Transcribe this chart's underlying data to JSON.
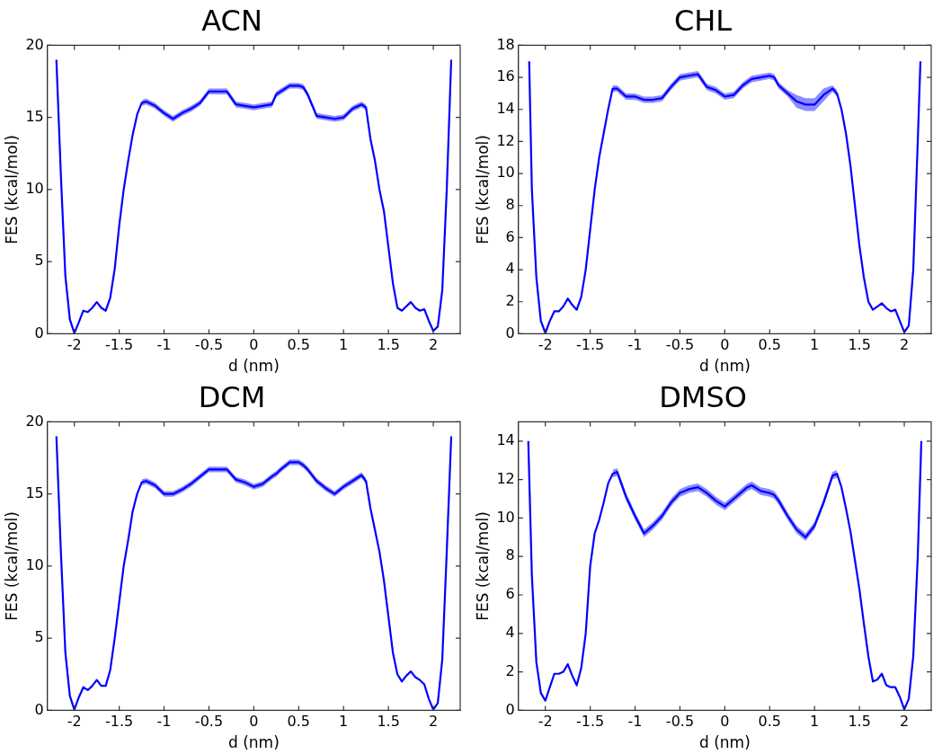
{
  "chart_data": [
    {
      "type": "line",
      "title": "ACN",
      "xlabel": "d (nm)",
      "ylabel": "FES (kcal/mol)",
      "xlim": [
        -2.3,
        2.3
      ],
      "ylim": [
        0,
        20
      ],
      "xticks": [
        -2,
        -1.5,
        -1,
        -0.5,
        0,
        0.5,
        1,
        1.5,
        2
      ],
      "yticks": [
        0,
        5,
        10,
        15,
        20
      ],
      "x": [
        -2.2,
        -2.15,
        -2.1,
        -2.05,
        -2,
        -1.95,
        -1.9,
        -1.85,
        -1.8,
        -1.75,
        -1.7,
        -1.65,
        -1.6,
        -1.55,
        -1.5,
        -1.45,
        -1.4,
        -1.35,
        -1.3,
        -1.25,
        -1.2,
        -1.1,
        -1,
        -0.9,
        -0.8,
        -0.7,
        -0.6,
        -0.5,
        -0.4,
        -0.3,
        -0.2,
        -0.1,
        0,
        0.1,
        0.2,
        0.25,
        0.3,
        0.4,
        0.5,
        0.55,
        0.6,
        0.7,
        0.8,
        0.9,
        1,
        1.1,
        1.2,
        1.25,
        1.3,
        1.35,
        1.4,
        1.45,
        1.5,
        1.55,
        1.6,
        1.65,
        1.7,
        1.75,
        1.8,
        1.85,
        1.9,
        1.95,
        2,
        2.05,
        2.1,
        2.15,
        2.2
      ],
      "series": [
        {
          "color": "#0000ff",
          "values": [
            19,
            11,
            4,
            1,
            0.05,
            0.8,
            1.6,
            1.5,
            1.8,
            2.2,
            1.8,
            1.6,
            2.5,
            4.5,
            7.5,
            10,
            12,
            13.8,
            15.2,
            16,
            16.1,
            15.8,
            15.3,
            14.9,
            15.3,
            15.6,
            16,
            16.8,
            16.8,
            16.8,
            15.9,
            15.8,
            15.7,
            15.8,
            15.9,
            16.6,
            16.8,
            17.2,
            17.2,
            17.1,
            16.6,
            15.1,
            15,
            14.9,
            15,
            15.6,
            15.9,
            15.7,
            13.5,
            12,
            10,
            8.5,
            6,
            3.5,
            1.8,
            1.6,
            1.9,
            2.2,
            1.8,
            1.6,
            1.7,
            0.9,
            0.2,
            0.5,
            3,
            10,
            19
          ],
          "lower": [
            null,
            null,
            null,
            null,
            null,
            null,
            null,
            null,
            null,
            null,
            null,
            null,
            null,
            null,
            null,
            null,
            null,
            null,
            null,
            15.8,
            15.9,
            15.6,
            15.1,
            14.7,
            15.1,
            15.4,
            15.8,
            16.6,
            16.6,
            16.6,
            15.7,
            15.6,
            15.5,
            15.6,
            15.7,
            16.4,
            16.6,
            17,
            17,
            16.9,
            16.4,
            14.9,
            14.8,
            14.7,
            14.8,
            15.4,
            15.7,
            15.5,
            null,
            null,
            null,
            null,
            null,
            null,
            null,
            null,
            null,
            null,
            null,
            null,
            null,
            null,
            null,
            null,
            null,
            null,
            null
          ],
          "upper": [
            null,
            null,
            null,
            null,
            null,
            null,
            null,
            null,
            null,
            null,
            null,
            null,
            null,
            null,
            null,
            null,
            null,
            null,
            null,
            16.2,
            16.3,
            16,
            15.5,
            15.1,
            15.5,
            15.8,
            16.2,
            17,
            17,
            17,
            16.1,
            16,
            15.9,
            16,
            16.1,
            16.8,
            17,
            17.4,
            17.4,
            17.3,
            16.8,
            15.3,
            15.2,
            15.1,
            15.2,
            15.8,
            16.1,
            15.9,
            null,
            null,
            null,
            null,
            null,
            null,
            null,
            null,
            null,
            null,
            null,
            null,
            null,
            null,
            null,
            null,
            null,
            null,
            null
          ]
        }
      ]
    },
    {
      "type": "line",
      "title": "CHL",
      "xlabel": "d (nm)",
      "ylabel": "FES (kcal/mol)",
      "xlim": [
        -2.3,
        2.3
      ],
      "ylim": [
        0,
        18
      ],
      "xticks": [
        -2,
        -1.5,
        -1,
        -0.5,
        0,
        0.5,
        1,
        1.5,
        2
      ],
      "yticks": [
        0,
        2,
        4,
        6,
        8,
        10,
        12,
        14,
        16,
        18
      ],
      "x": [
        -2.18,
        -2.15,
        -2.1,
        -2.05,
        -2,
        -1.95,
        -1.9,
        -1.85,
        -1.8,
        -1.75,
        -1.7,
        -1.65,
        -1.6,
        -1.55,
        -1.5,
        -1.45,
        -1.4,
        -1.35,
        -1.3,
        -1.25,
        -1.2,
        -1.1,
        -1,
        -0.9,
        -0.8,
        -0.7,
        -0.6,
        -0.5,
        -0.4,
        -0.3,
        -0.2,
        -0.1,
        0,
        0.1,
        0.2,
        0.25,
        0.3,
        0.4,
        0.5,
        0.55,
        0.6,
        0.7,
        0.8,
        0.9,
        1,
        1.1,
        1.2,
        1.25,
        1.3,
        1.35,
        1.4,
        1.45,
        1.5,
        1.55,
        1.6,
        1.65,
        1.7,
        1.75,
        1.8,
        1.85,
        1.9,
        1.95,
        2,
        2.05,
        2.1,
        2.15,
        2.18
      ],
      "series": [
        {
          "color": "#0000ff",
          "values": [
            17,
            9,
            3.5,
            0.8,
            0.05,
            0.8,
            1.4,
            1.4,
            1.7,
            2.2,
            1.8,
            1.5,
            2.3,
            4,
            6.5,
            9,
            11,
            12.5,
            14,
            15.3,
            15.3,
            14.8,
            14.8,
            14.6,
            14.6,
            14.7,
            15.4,
            16,
            16.1,
            16.2,
            15.4,
            15.2,
            14.8,
            14.9,
            15.5,
            15.7,
            15.9,
            16,
            16.1,
            16,
            15.5,
            15,
            14.5,
            14.3,
            14.3,
            14.9,
            15.3,
            15,
            14,
            12.5,
            10.5,
            8,
            5.5,
            3.5,
            2,
            1.5,
            1.7,
            1.9,
            1.6,
            1.4,
            1.5,
            0.8,
            0.1,
            0.5,
            4,
            12,
            17
          ],
          "lower": [
            null,
            null,
            null,
            null,
            null,
            null,
            null,
            null,
            null,
            null,
            null,
            null,
            null,
            null,
            null,
            null,
            null,
            null,
            null,
            15.1,
            15.1,
            14.6,
            14.6,
            14.4,
            14.4,
            14.5,
            15.2,
            15.8,
            15.9,
            16,
            15.2,
            15,
            14.6,
            14.7,
            15.3,
            15.5,
            15.7,
            15.8,
            15.9,
            15.8,
            15.3,
            14.8,
            14.1,
            13.9,
            13.9,
            14.5,
            15.1,
            14.8,
            null,
            null,
            null,
            null,
            null,
            null,
            null,
            null,
            null,
            null,
            null,
            null,
            null,
            null,
            null,
            null,
            null,
            null,
            null
          ],
          "upper": [
            null,
            null,
            null,
            null,
            null,
            null,
            null,
            null,
            null,
            null,
            null,
            null,
            null,
            null,
            null,
            null,
            null,
            null,
            null,
            15.5,
            15.5,
            15,
            15,
            14.8,
            14.8,
            14.9,
            15.6,
            16.2,
            16.3,
            16.4,
            15.6,
            15.4,
            15,
            15.1,
            15.7,
            15.9,
            16.1,
            16.2,
            16.3,
            16.2,
            15.7,
            15.2,
            14.9,
            14.7,
            14.7,
            15.3,
            15.5,
            15.2,
            null,
            null,
            null,
            null,
            null,
            null,
            null,
            null,
            null,
            null,
            null,
            null,
            null,
            null,
            null,
            null,
            null,
            null,
            null
          ]
        }
      ]
    },
    {
      "type": "line",
      "title": "DCM",
      "xlabel": "d (nm)",
      "ylabel": "FES (kcal/mol)",
      "xlim": [
        -2.3,
        2.3
      ],
      "ylim": [
        0,
        20
      ],
      "xticks": [
        -2,
        -1.5,
        -1,
        -0.5,
        0,
        0.5,
        1,
        1.5,
        2
      ],
      "yticks": [
        0,
        5,
        10,
        15,
        20
      ],
      "x": [
        -2.2,
        -2.15,
        -2.1,
        -2.05,
        -2,
        -1.95,
        -1.9,
        -1.85,
        -1.8,
        -1.75,
        -1.7,
        -1.65,
        -1.6,
        -1.55,
        -1.5,
        -1.45,
        -1.4,
        -1.35,
        -1.3,
        -1.25,
        -1.2,
        -1.1,
        -1,
        -0.9,
        -0.8,
        -0.7,
        -0.6,
        -0.5,
        -0.4,
        -0.3,
        -0.2,
        -0.1,
        0,
        0.1,
        0.2,
        0.25,
        0.3,
        0.4,
        0.5,
        0.55,
        0.6,
        0.7,
        0.8,
        0.9,
        1,
        1.1,
        1.2,
        1.25,
        1.3,
        1.35,
        1.4,
        1.45,
        1.5,
        1.55,
        1.6,
        1.65,
        1.7,
        1.75,
        1.8,
        1.85,
        1.9,
        1.95,
        2,
        2.05,
        2.1,
        2.15,
        2.2
      ],
      "series": [
        {
          "color": "#0000ff",
          "values": [
            19,
            11,
            4,
            1,
            0.05,
            0.9,
            1.6,
            1.4,
            1.7,
            2.1,
            1.7,
            1.7,
            2.8,
            5,
            7.5,
            10,
            11.8,
            13.8,
            15,
            15.8,
            15.9,
            15.6,
            15,
            15,
            15.3,
            15.7,
            16.2,
            16.7,
            16.7,
            16.7,
            16,
            15.8,
            15.5,
            15.7,
            16.2,
            16.4,
            16.7,
            17.2,
            17.2,
            17,
            16.7,
            15.9,
            15.4,
            15,
            15.5,
            15.9,
            16.3,
            15.9,
            14,
            12.5,
            11,
            9,
            6.5,
            4,
            2.5,
            2,
            2.4,
            2.7,
            2.3,
            2.1,
            1.8,
            0.8,
            0.05,
            0.5,
            3.5,
            11,
            19
          ],
          "lower": [
            null,
            null,
            null,
            null,
            null,
            null,
            null,
            null,
            null,
            null,
            null,
            null,
            null,
            null,
            null,
            null,
            null,
            null,
            null,
            15.6,
            15.7,
            15.4,
            14.8,
            14.8,
            15.1,
            15.5,
            16,
            16.5,
            16.5,
            16.5,
            15.8,
            15.6,
            15.3,
            15.5,
            16,
            16.2,
            16.5,
            17,
            17,
            16.8,
            16.5,
            15.7,
            15.2,
            14.8,
            15.3,
            15.7,
            16.1,
            15.7,
            null,
            null,
            null,
            null,
            null,
            null,
            null,
            null,
            null,
            null,
            null,
            null,
            null,
            null,
            null,
            null,
            null,
            null,
            null
          ],
          "upper": [
            null,
            null,
            null,
            null,
            null,
            null,
            null,
            null,
            null,
            null,
            null,
            null,
            null,
            null,
            null,
            null,
            null,
            null,
            null,
            16,
            16.1,
            15.8,
            15.2,
            15.2,
            15.5,
            15.9,
            16.4,
            16.9,
            16.9,
            16.9,
            16.2,
            16,
            15.7,
            15.9,
            16.4,
            16.6,
            16.9,
            17.4,
            17.4,
            17.2,
            16.9,
            16.1,
            15.6,
            15.2,
            15.7,
            16.1,
            16.5,
            16.1,
            null,
            null,
            null,
            null,
            null,
            null,
            null,
            null,
            null,
            null,
            null,
            null,
            null,
            null,
            null,
            null,
            null,
            null,
            null
          ]
        }
      ]
    },
    {
      "type": "line",
      "title": "DMSO",
      "xlabel": "d (nm)",
      "ylabel": "FES (kcal/mol)",
      "xlim": [
        -2.3,
        2.3
      ],
      "ylim": [
        0,
        15
      ],
      "xticks": [
        -2,
        -1.5,
        -1,
        -0.5,
        0,
        0.5,
        1,
        1.5,
        2
      ],
      "yticks": [
        0,
        2,
        4,
        6,
        8,
        10,
        12,
        14
      ],
      "x": [
        -2.19,
        -2.15,
        -2.1,
        -2.05,
        -2,
        -1.95,
        -1.9,
        -1.85,
        -1.8,
        -1.75,
        -1.7,
        -1.65,
        -1.6,
        -1.55,
        -1.5,
        -1.45,
        -1.4,
        -1.35,
        -1.3,
        -1.25,
        -1.2,
        -1.1,
        -1,
        -0.9,
        -0.8,
        -0.7,
        -0.6,
        -0.5,
        -0.4,
        -0.3,
        -0.2,
        -0.1,
        0,
        0.1,
        0.2,
        0.25,
        0.3,
        0.4,
        0.5,
        0.55,
        0.6,
        0.7,
        0.8,
        0.9,
        1,
        1.1,
        1.2,
        1.25,
        1.3,
        1.35,
        1.4,
        1.45,
        1.5,
        1.55,
        1.6,
        1.65,
        1.7,
        1.75,
        1.8,
        1.85,
        1.9,
        1.95,
        2,
        2.05,
        2.1,
        2.15,
        2.19
      ],
      "series": [
        {
          "color": "#0000ff",
          "values": [
            14,
            7,
            2.5,
            0.9,
            0.5,
            1.2,
            1.9,
            1.9,
            2,
            2.4,
            1.8,
            1.3,
            2.2,
            4,
            7.5,
            9.2,
            9.9,
            10.8,
            11.8,
            12.3,
            12.4,
            11.1,
            10.1,
            9.2,
            9.6,
            10.1,
            10.8,
            11.3,
            11.5,
            11.6,
            11.3,
            10.9,
            10.6,
            11,
            11.4,
            11.6,
            11.7,
            11.4,
            11.3,
            11.2,
            10.9,
            10.1,
            9.4,
            9,
            9.6,
            10.8,
            12.2,
            12.3,
            11.6,
            10.5,
            9.3,
            7.8,
            6.3,
            4.5,
            2.8,
            1.5,
            1.6,
            1.9,
            1.3,
            1.2,
            1.2,
            0.7,
            0.05,
            0.6,
            2.8,
            8,
            14
          ],
          "lower": [
            null,
            null,
            null,
            null,
            null,
            null,
            null,
            null,
            null,
            null,
            null,
            null,
            null,
            null,
            null,
            null,
            null,
            null,
            null,
            12.1,
            12.2,
            10.9,
            9.9,
            9,
            9.4,
            9.9,
            10.6,
            11.1,
            11.3,
            11.4,
            11.1,
            10.7,
            10.4,
            10.8,
            11.2,
            11.4,
            11.5,
            11.2,
            11.1,
            11,
            10.7,
            9.9,
            9.2,
            8.8,
            9.4,
            10.6,
            12,
            12.1,
            null,
            null,
            null,
            null,
            null,
            null,
            null,
            null,
            null,
            null,
            null,
            null,
            null,
            null,
            null,
            null,
            null,
            null,
            null
          ],
          "upper": [
            null,
            null,
            null,
            null,
            null,
            null,
            null,
            null,
            null,
            null,
            null,
            null,
            null,
            null,
            null,
            null,
            null,
            null,
            null,
            12.5,
            12.6,
            11.3,
            10.3,
            9.4,
            9.8,
            10.3,
            11,
            11.5,
            11.7,
            11.8,
            11.5,
            11.1,
            10.8,
            11.2,
            11.6,
            11.8,
            11.9,
            11.6,
            11.5,
            11.4,
            11.1,
            10.3,
            9.6,
            9.2,
            9.8,
            11,
            12.4,
            12.5,
            null,
            null,
            null,
            null,
            null,
            null,
            null,
            null,
            null,
            null,
            null,
            null,
            null,
            null,
            null,
            null,
            null,
            null,
            null
          ]
        }
      ]
    }
  ]
}
